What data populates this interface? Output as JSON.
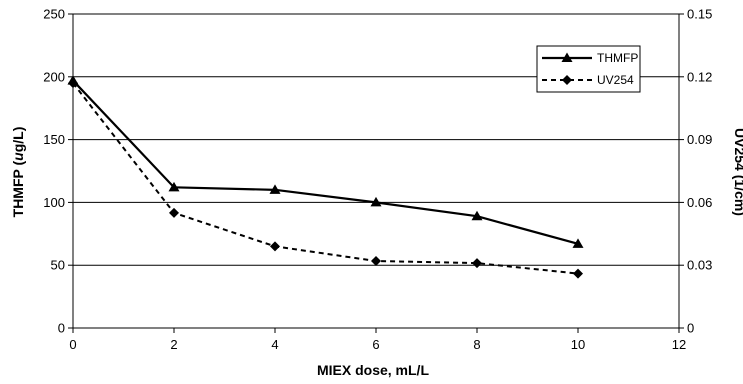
{
  "chart_data": {
    "type": "line",
    "title": "",
    "xlabel": "MIEX dose, mL/L",
    "ylabel_left_pre": "THMFP (",
    "ylabel_left_mu": "u",
    "ylabel_left_post": "g/L)",
    "ylabel_right": "UV254 (1/cm)",
    "xlim": [
      0,
      12
    ],
    "ylim_left": [
      0,
      250
    ],
    "ylim_right": [
      0,
      0.15
    ],
    "x_ticks": [
      "0",
      "2",
      "4",
      "6",
      "8",
      "10",
      "12"
    ],
    "y_ticks_left": [
      "0",
      "50",
      "100",
      "150",
      "200",
      "250"
    ],
    "y_ticks_right": [
      "0",
      "0.03",
      "0.06",
      "0.09",
      "0.12",
      "0.15"
    ],
    "grid": "horizontal",
    "legend_position": "top-right",
    "series": [
      {
        "name": "THMFP",
        "axis": "left",
        "style": "solid",
        "marker": "triangle",
        "x": [
          0,
          2,
          4,
          6,
          8,
          10
        ],
        "y": [
          197,
          112,
          110,
          100,
          89,
          67
        ]
      },
      {
        "name": "UV254",
        "axis": "right",
        "style": "dashed",
        "marker": "diamond",
        "x": [
          0,
          2,
          4,
          6,
          8,
          10
        ],
        "y": [
          0.117,
          0.055,
          0.039,
          0.032,
          0.031,
          0.026
        ]
      }
    ]
  }
}
